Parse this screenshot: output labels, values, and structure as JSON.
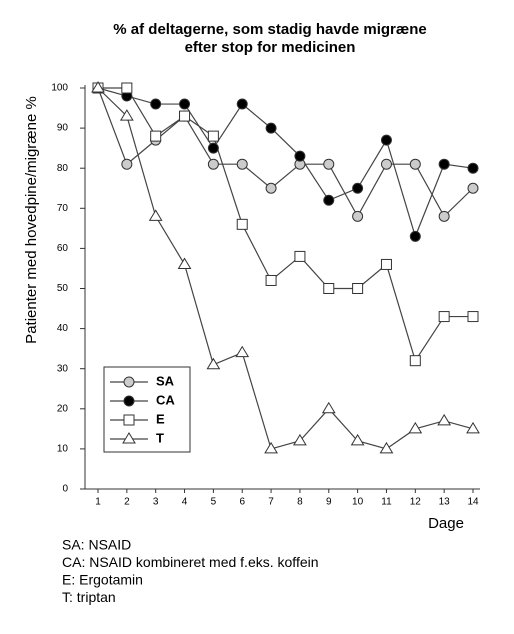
{
  "chart_data": {
    "type": "line",
    "title": [
      "% af deltagerne, som stadig havde migræne",
      "efter stop for medicinen"
    ],
    "y_label": "Patienter med hovedpine/migræne %",
    "x_label": "Dage",
    "x": [
      1,
      2,
      3,
      4,
      5,
      6,
      7,
      8,
      9,
      10,
      11,
      12,
      13,
      14
    ],
    "xlim": [
      1,
      14
    ],
    "xticks": [
      1,
      2,
      3,
      4,
      5,
      6,
      7,
      8,
      9,
      10,
      11,
      12,
      13,
      14
    ],
    "ylim": [
      0,
      100
    ],
    "yticks": [
      0,
      10,
      20,
      30,
      40,
      50,
      60,
      70,
      80,
      90,
      100
    ],
    "grid": false,
    "legend": "lower left",
    "series": [
      {
        "name": "SA",
        "color": "#cccccc",
        "marker": "circle",
        "values": [
          100,
          81,
          87,
          93,
          81,
          81,
          75,
          81,
          81,
          68,
          81,
          81,
          68,
          75
        ]
      },
      {
        "name": "CA",
        "color": "#000000",
        "marker": "circle",
        "values": [
          100,
          98,
          96,
          96,
          85,
          96,
          90,
          83,
          72,
          75,
          87,
          63,
          81,
          80
        ]
      },
      {
        "name": "E",
        "color": "#ffffff",
        "marker": "square",
        "values": [
          100,
          100,
          88,
          93,
          88,
          66,
          52,
          58,
          50,
          50,
          56,
          32,
          43,
          43
        ]
      },
      {
        "name": "T",
        "color": "#ffffff",
        "marker": "triangle",
        "values": [
          100,
          93,
          68,
          56,
          31,
          34,
          10,
          12,
          20,
          12,
          10,
          15,
          17,
          15
        ]
      }
    ],
    "notes": [
      "SA: NSAID",
      "CA: NSAID kombineret med f.eks. koffein",
      "E: Ergotamin",
      "T: triptan"
    ]
  }
}
